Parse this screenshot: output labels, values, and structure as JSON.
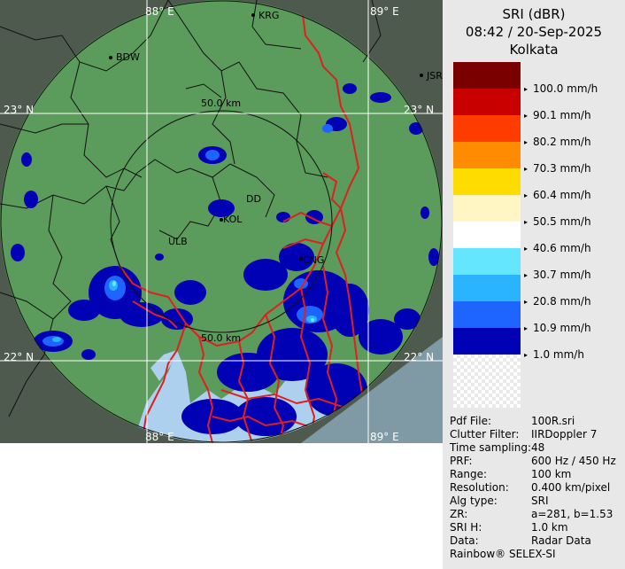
{
  "map": {
    "grid_labels": {
      "lon_88_top": "88° E",
      "lon_89_top": "89° E",
      "lon_88_bottom": "88° E",
      "lon_89_bottom": "89° E",
      "lat_23_left": "23° N",
      "lat_23_right": "23° N",
      "lat_22_left": "22° N",
      "lat_22_right": "22° N"
    },
    "range_labels": {
      "inner_top": "50.0 km",
      "inner_bottom": "50.0 km"
    },
    "cities": {
      "krg": "KRG",
      "bdw": "BDW",
      "jsr": "JSR",
      "dd": "DD",
      "kol": "KOL",
      "ulb": "ULB",
      "cng": "CNG"
    }
  },
  "panel": {
    "product": "SRI (dBR)",
    "datetime": "08:42 / 20-Sep-2025",
    "station": "Kolkata"
  },
  "legend": [
    {
      "label": "100.0 mm/h",
      "color": "#7a0000"
    },
    {
      "label": "90.1 mm/h",
      "color": "#c80000"
    },
    {
      "label": "80.2 mm/h",
      "color": "#ff3c00"
    },
    {
      "label": "70.3 mm/h",
      "color": "#ff8c00"
    },
    {
      "label": "60.4 mm/h",
      "color": "#ffdc00"
    },
    {
      "label": "50.5 mm/h",
      "color": "#fff6c4"
    },
    {
      "label": "40.6 mm/h",
      "color": "#ffffff"
    },
    {
      "label": "30.7 mm/h",
      "color": "#64e6ff"
    },
    {
      "label": "20.8 mm/h",
      "color": "#2ab4ff"
    },
    {
      "label": "10.9 mm/h",
      "color": "#1e64ff"
    },
    {
      "label": "1.0 mm/h",
      "color": "#0000b4"
    }
  ],
  "info": [
    {
      "key": "Pdf File:",
      "value": "100R.sri"
    },
    {
      "key": "Clutter Filter:",
      "value": "IIRDoppler 7"
    },
    {
      "key": "Time sampling:",
      "value": "48"
    },
    {
      "key": "PRF:",
      "value": "600 Hz / 450 Hz"
    },
    {
      "key": "Range:",
      "value": "100 km"
    },
    {
      "key": "Resolution:",
      "value": "0.400 km/pixel"
    },
    {
      "key": "Alg type:",
      "value": "SRI"
    },
    {
      "key": "ZR:",
      "value": "a=281, b=1.53"
    },
    {
      "key": "SRI H:",
      "value": "1.0 km"
    },
    {
      "key": "Data:",
      "value": "Radar Data"
    }
  ],
  "credit": "Rainbow® SELEX-SI",
  "colors": {
    "land": "#5b9b5b",
    "outside": "#4d5a4d",
    "sea": "#aed0ef",
    "coast": "#e02020",
    "grid": "#ffffff"
  }
}
